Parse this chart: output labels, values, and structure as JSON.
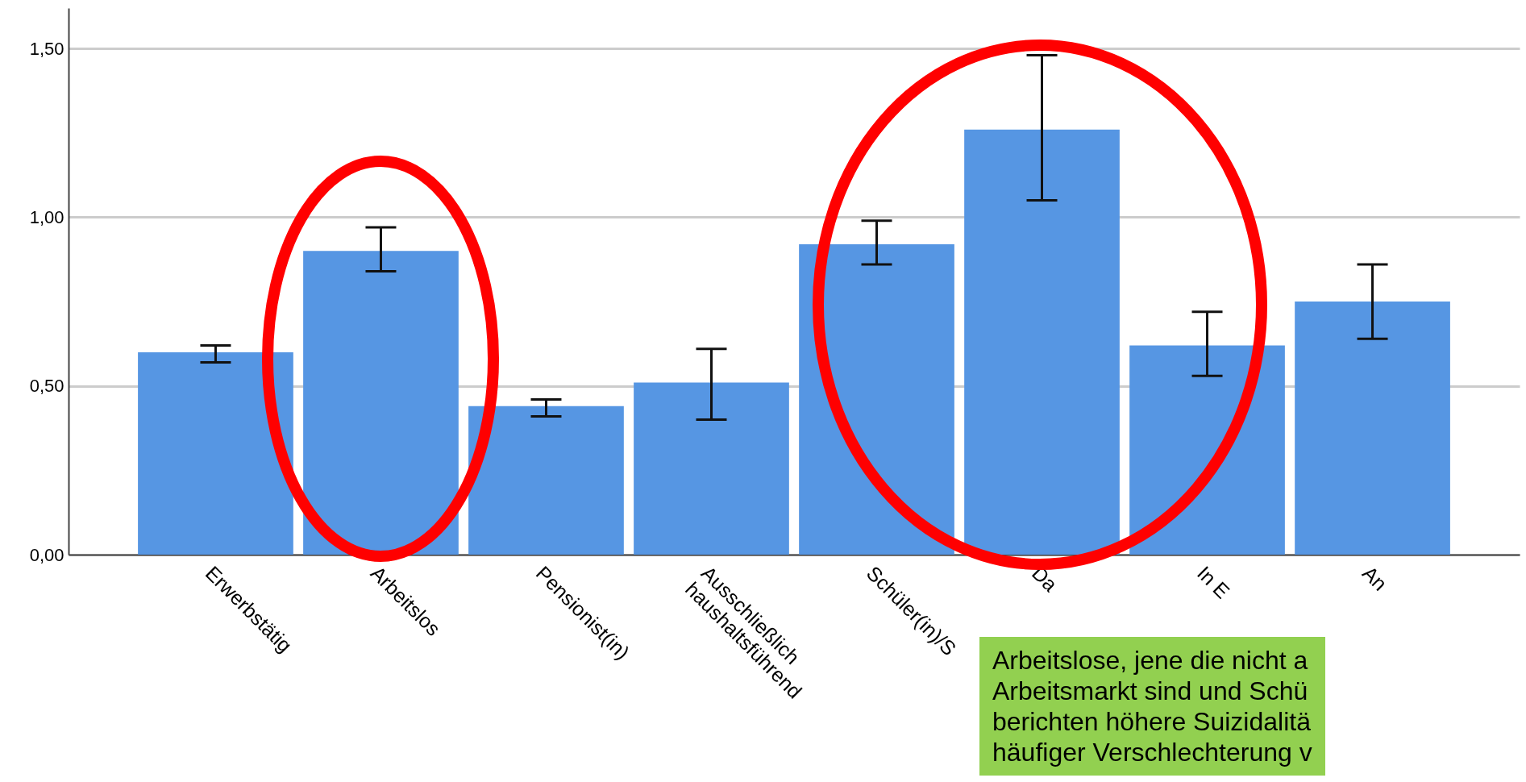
{
  "chart_data": {
    "type": "bar",
    "categories": [
      "Erwerbstätig",
      "Arbeitslos",
      "Pensionist(in)",
      "Ausschließlich\nhaushaltsführend",
      "Schüler(in)/S",
      "Da",
      "In E",
      "An"
    ],
    "values": [
      0.6,
      0.9,
      0.44,
      0.51,
      0.92,
      1.26,
      0.62,
      0.75
    ],
    "errors": [
      [
        0.57,
        0.62
      ],
      [
        0.84,
        0.97
      ],
      [
        0.41,
        0.46
      ],
      [
        0.4,
        0.61
      ],
      [
        0.86,
        0.99
      ],
      [
        1.05,
        1.48
      ],
      [
        0.53,
        0.72
      ],
      [
        0.64,
        0.86
      ]
    ],
    "color": "#5696e3",
    "ylim": [
      0,
      1.62
    ],
    "yticks": [
      {
        "value": 0,
        "label": "0,00"
      },
      {
        "value": 0.5,
        "label": "0,50"
      },
      {
        "value": 1,
        "label": "1,00"
      },
      {
        "value": 1.5,
        "label": "1,50"
      }
    ],
    "grid": "y",
    "annotations": [
      "Arbeitslose, jene die nicht a\nArbeitsmarkt sind und Schü\nberichten höhere Suizidalitä\nhäufiger Verschlechterung v"
    ]
  }
}
